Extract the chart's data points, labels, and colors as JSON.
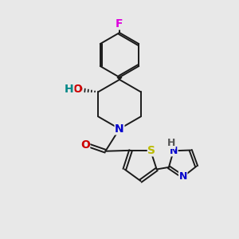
{
  "background_color": "#e8e8e8",
  "bond_color": "#1a1a1a",
  "figsize": [
    3.0,
    3.0
  ],
  "dpi": 100,
  "colors": {
    "F": "#dd00dd",
    "O": "#cc0000",
    "H_teal": "#008888",
    "N": "#0000cc",
    "S": "#bbbb00",
    "H_gray": "#555555"
  }
}
